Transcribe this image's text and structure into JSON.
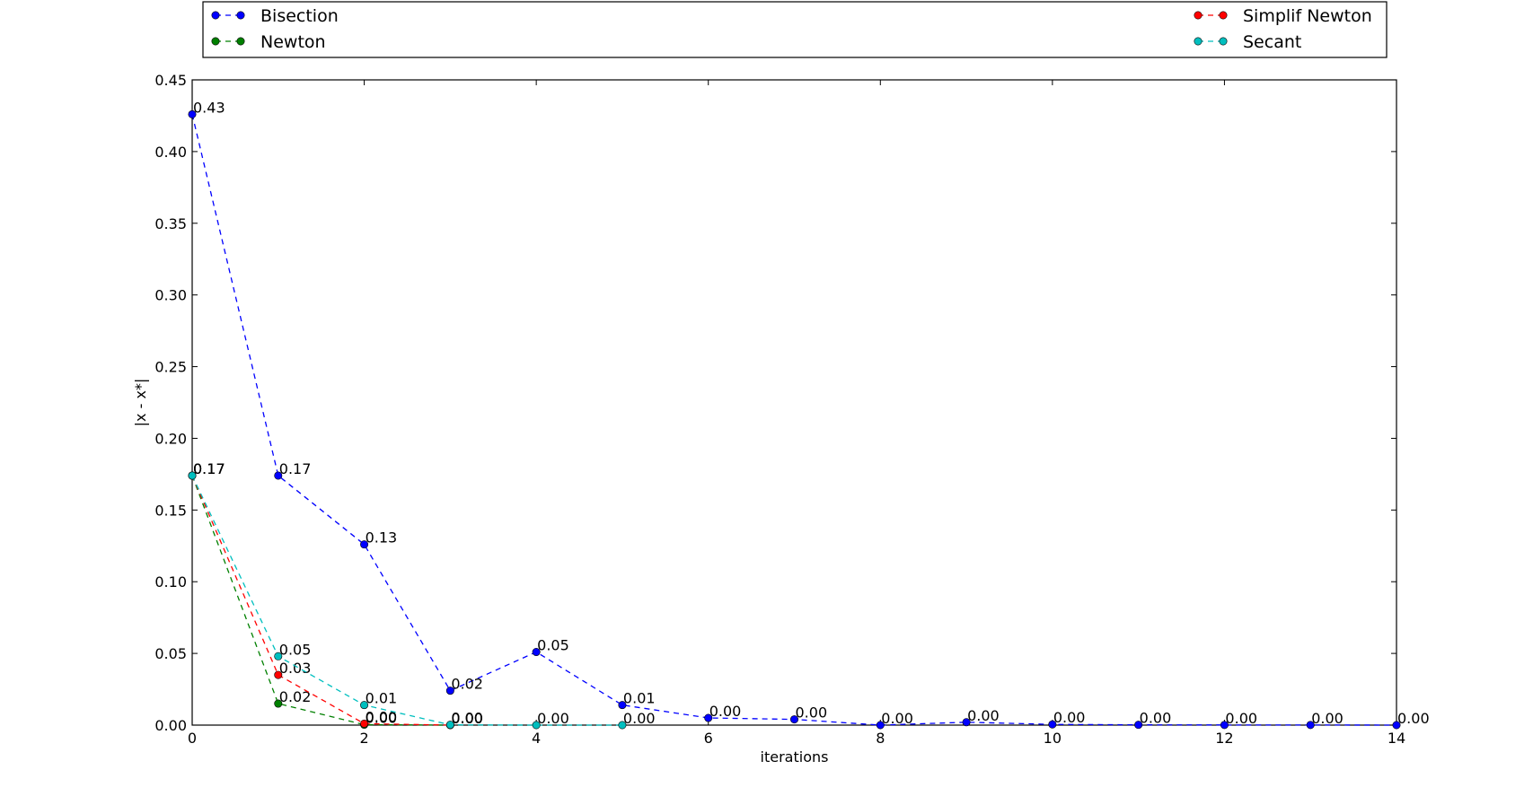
{
  "chart_data": {
    "type": "line",
    "title": "",
    "xlabel": "iterations",
    "ylabel": "|x - x*|",
    "xlim": [
      0,
      14
    ],
    "ylim": [
      0,
      0.45
    ],
    "x_ticks": [
      "0",
      "2",
      "4",
      "6",
      "8",
      "10",
      "12",
      "14"
    ],
    "y_ticks": [
      "0.00",
      "0.05",
      "0.10",
      "0.15",
      "0.20",
      "0.25",
      "0.30",
      "0.35",
      "0.40",
      "0.45"
    ],
    "grid": false,
    "legend_placement": "top, above plot",
    "line_style": "dashed",
    "series": [
      {
        "name": "Bisection",
        "color": "#0000ff",
        "x": [
          0,
          1,
          2,
          3,
          4,
          5,
          6,
          7,
          8,
          9,
          10,
          11,
          12,
          13,
          14
        ],
        "values": [
          0.426,
          0.174,
          0.126,
          0.024,
          0.051,
          0.014,
          0.005,
          0.004,
          0.0,
          0.002,
          0.0005,
          0.0002,
          0.0001,
          0.0001,
          0.0
        ],
        "labels": [
          "0.43",
          "0.17",
          "0.13",
          "0.02",
          "0.05",
          "0.01",
          "0.00",
          "0.00",
          "0.00",
          "0.00",
          "0.00",
          "0.00",
          "0.00",
          "0.00",
          "0.00"
        ]
      },
      {
        "name": "Newton",
        "color": "#008000",
        "x": [
          0,
          1,
          2,
          3
        ],
        "values": [
          0.174,
          0.015,
          0.0003,
          0.0
        ],
        "labels": [
          "0.17",
          "0.02",
          "0.00",
          "0.00"
        ]
      },
      {
        "name": "Simplif Newton",
        "color": "#ff0000",
        "x": [
          0,
          1,
          2,
          3
        ],
        "values": [
          0.174,
          0.035,
          0.001,
          0.0
        ],
        "labels": [
          "0.17",
          "0.03",
          "0.00",
          "0.00"
        ]
      },
      {
        "name": "Secant",
        "color": "#00bfbf",
        "x": [
          0,
          1,
          2,
          3,
          4,
          5
        ],
        "values": [
          0.174,
          0.048,
          0.014,
          0.0002,
          0.0,
          0.0
        ],
        "labels": [
          "0.17",
          "0.05",
          "0.01",
          "0.00",
          "0.00",
          "0.00"
        ]
      }
    ]
  }
}
